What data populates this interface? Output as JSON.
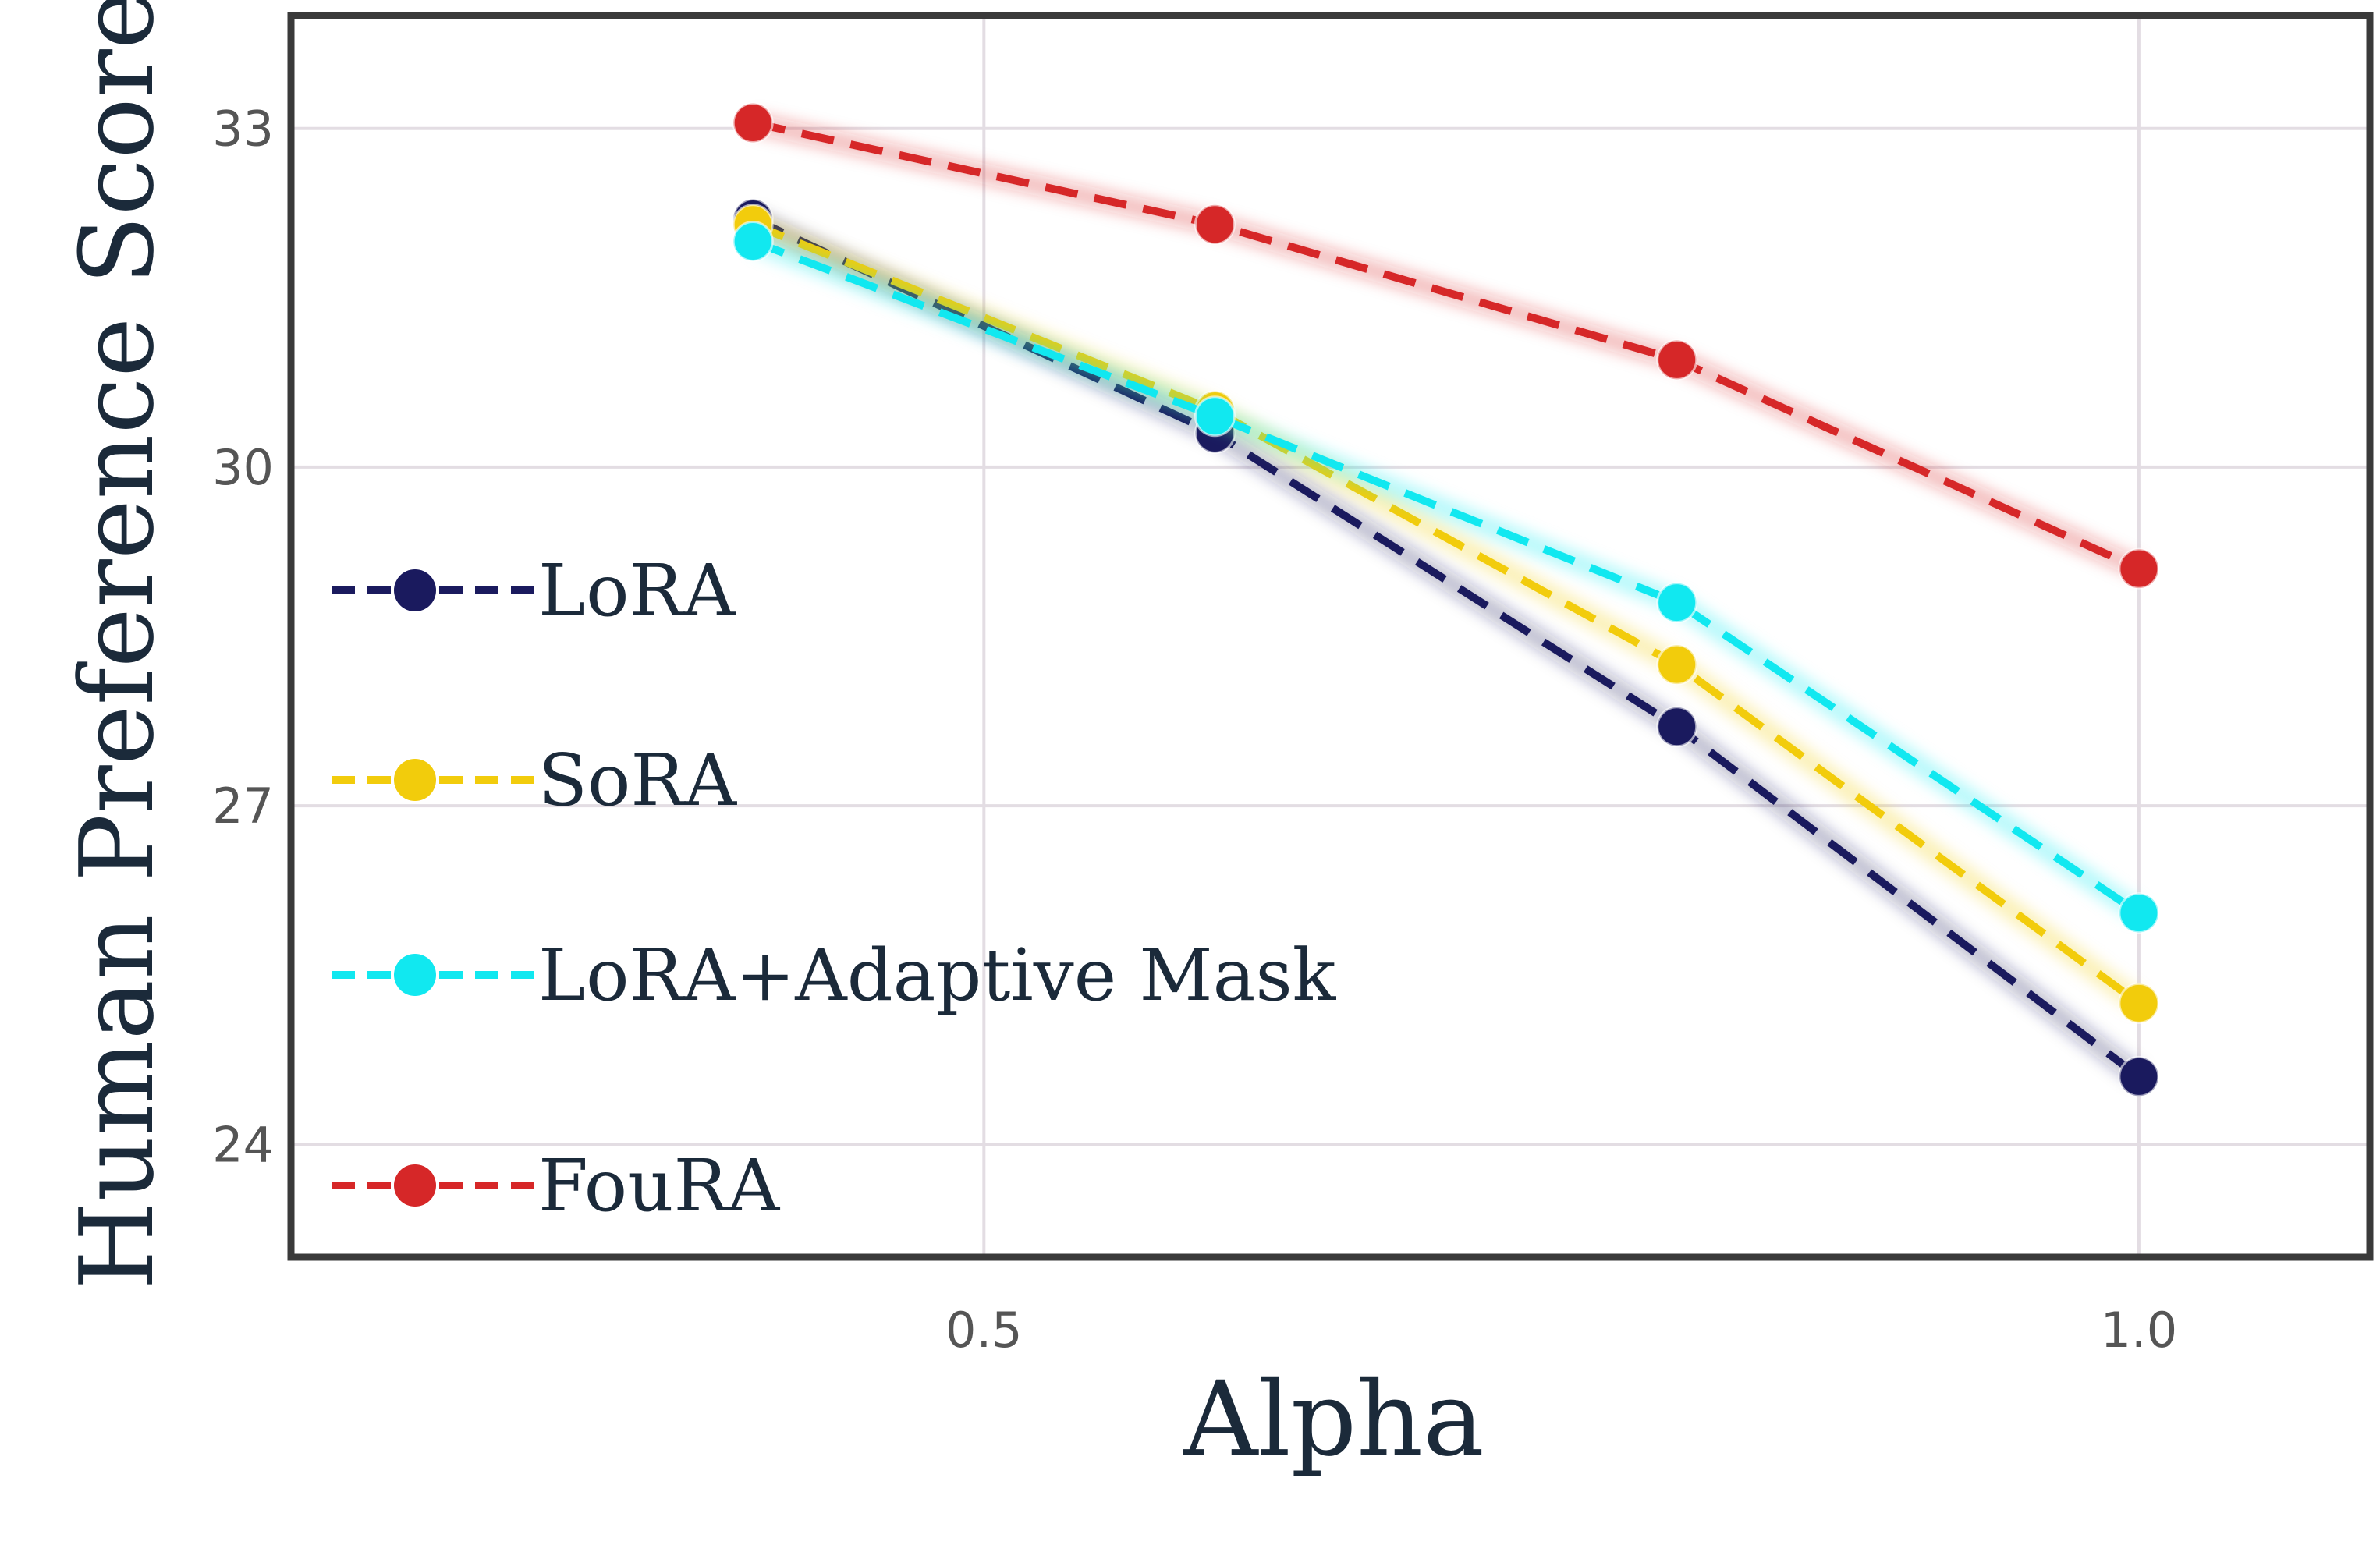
{
  "chart_data": {
    "type": "line",
    "xlabel": "Alpha",
    "ylabel": "Human Preference Score",
    "xlim": [
      0.2,
      1.1
    ],
    "ylim": [
      23.0,
      34.0
    ],
    "xticks": [
      0.5,
      1.0
    ],
    "xtick_labels": [
      "0.5",
      "1.0"
    ],
    "yticks": [
      24,
      27,
      30,
      33
    ],
    "ytick_labels": [
      "24",
      "27",
      "30",
      "33"
    ],
    "grid": true,
    "legend_position": "left",
    "x": [
      0.4,
      0.6,
      0.8,
      1.0
    ],
    "series": [
      {
        "name": "LoRA",
        "color": "#1a1a5e",
        "values": [
          32.2,
          30.3,
          27.7,
          24.6
        ]
      },
      {
        "name": "SoRA",
        "color": "#f2cc0c",
        "values": [
          32.15,
          30.5,
          28.25,
          25.25
        ]
      },
      {
        "name": "LoRA+Adaptive Mask",
        "color": "#11e8f0",
        "values": [
          32.0,
          30.45,
          28.8,
          26.05
        ]
      },
      {
        "name": "FouRA",
        "color": "#d62728",
        "values": [
          33.05,
          32.15,
          30.95,
          29.1
        ]
      }
    ]
  }
}
